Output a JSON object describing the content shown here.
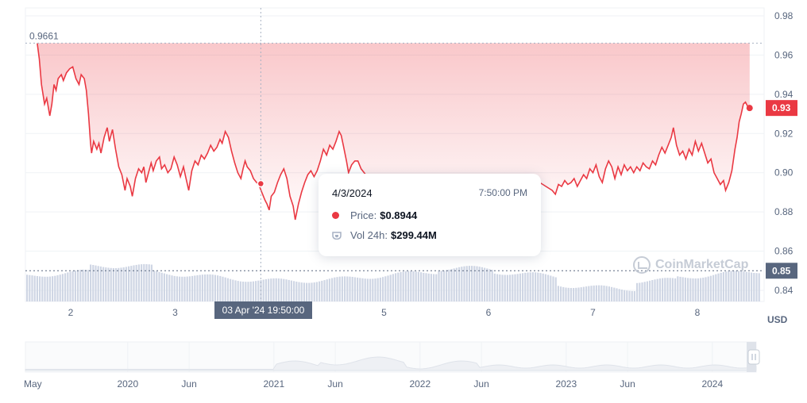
{
  "chart_data": {
    "type": "line",
    "currency": "USD",
    "y_ticks": [
      "0.98",
      "0.96",
      "0.94",
      "0.92",
      "0.90",
      "0.88",
      "0.86",
      "0.84"
    ],
    "ylim": [
      0.84,
      0.98
    ],
    "x_ticks": [
      {
        "label": "2",
        "day": 2
      },
      {
        "label": "3",
        "day": 3
      },
      {
        "label": "5",
        "day": 5
      },
      {
        "label": "6",
        "day": 6
      },
      {
        "label": "7",
        "day": 7
      },
      {
        "label": "8",
        "day": 8
      }
    ],
    "xlim_days": [
      1.57,
      8.6
    ],
    "price_series": {
      "name": "Price",
      "color": "#ea3943",
      "points": [
        [
          1.68,
          0.966
        ],
        [
          1.7,
          0.958
        ],
        [
          1.72,
          0.945
        ],
        [
          1.75,
          0.935
        ],
        [
          1.77,
          0.938
        ],
        [
          1.8,
          0.929
        ],
        [
          1.82,
          0.935
        ],
        [
          1.84,
          0.945
        ],
        [
          1.86,
          0.942
        ],
        [
          1.88,
          0.948
        ],
        [
          1.91,
          0.95
        ],
        [
          1.93,
          0.947
        ],
        [
          1.96,
          0.951
        ],
        [
          1.99,
          0.953
        ],
        [
          2.02,
          0.954
        ],
        [
          2.05,
          0.948
        ],
        [
          2.08,
          0.945
        ],
        [
          2.1,
          0.95
        ],
        [
          2.13,
          0.948
        ],
        [
          2.15,
          0.942
        ],
        [
          2.17,
          0.93
        ],
        [
          2.19,
          0.915
        ],
        [
          2.2,
          0.91
        ],
        [
          2.22,
          0.916
        ],
        [
          2.25,
          0.912
        ],
        [
          2.27,
          0.915
        ],
        [
          2.29,
          0.91
        ],
        [
          2.32,
          0.918
        ],
        [
          2.35,
          0.923
        ],
        [
          2.37,
          0.916
        ],
        [
          2.4,
          0.922
        ],
        [
          2.43,
          0.912
        ],
        [
          2.46,
          0.903
        ],
        [
          2.49,
          0.899
        ],
        [
          2.52,
          0.891
        ],
        [
          2.54,
          0.897
        ],
        [
          2.57,
          0.893
        ],
        [
          2.59,
          0.888
        ],
        [
          2.62,
          0.897
        ],
        [
          2.65,
          0.902
        ],
        [
          2.68,
          0.9
        ],
        [
          2.7,
          0.903
        ],
        [
          2.72,
          0.895
        ],
        [
          2.74,
          0.899
        ],
        [
          2.77,
          0.905
        ],
        [
          2.79,
          0.901
        ],
        [
          2.82,
          0.906
        ],
        [
          2.85,
          0.908
        ],
        [
          2.87,
          0.902
        ],
        [
          2.9,
          0.904
        ],
        [
          2.93,
          0.9
        ],
        [
          2.96,
          0.902
        ],
        [
          2.99,
          0.908
        ],
        [
          3.02,
          0.904
        ],
        [
          3.05,
          0.898
        ],
        [
          3.08,
          0.903
        ],
        [
          3.1,
          0.898
        ],
        [
          3.13,
          0.891
        ],
        [
          3.16,
          0.901
        ],
        [
          3.19,
          0.906
        ],
        [
          3.22,
          0.904
        ],
        [
          3.25,
          0.909
        ],
        [
          3.28,
          0.907
        ],
        [
          3.31,
          0.91
        ],
        [
          3.34,
          0.914
        ],
        [
          3.37,
          0.911
        ],
        [
          3.4,
          0.913
        ],
        [
          3.43,
          0.917
        ],
        [
          3.45,
          0.915
        ],
        [
          3.48,
          0.921
        ],
        [
          3.51,
          0.918
        ],
        [
          3.54,
          0.911
        ],
        [
          3.57,
          0.905
        ],
        [
          3.6,
          0.9
        ],
        [
          3.63,
          0.897
        ],
        [
          3.65,
          0.902
        ],
        [
          3.67,
          0.906
        ],
        [
          3.69,
          0.903
        ],
        [
          3.72,
          0.901
        ],
        [
          3.75,
          0.897
        ],
        [
          3.78,
          0.895
        ],
        [
          3.8,
          0.894
        ],
        [
          3.83,
          0.89
        ],
        [
          3.86,
          0.886
        ],
        [
          3.88,
          0.884
        ],
        [
          3.9,
          0.881
        ],
        [
          3.92,
          0.888
        ],
        [
          3.95,
          0.89
        ],
        [
          3.98,
          0.895
        ],
        [
          4.01,
          0.899
        ],
        [
          4.04,
          0.902
        ],
        [
          4.07,
          0.897
        ],
        [
          4.1,
          0.888
        ],
        [
          4.13,
          0.883
        ],
        [
          4.15,
          0.876
        ],
        [
          4.18,
          0.884
        ],
        [
          4.21,
          0.89
        ],
        [
          4.24,
          0.895
        ],
        [
          4.27,
          0.899
        ],
        [
          4.3,
          0.901
        ],
        [
          4.33,
          0.898
        ],
        [
          4.36,
          0.901
        ],
        [
          4.39,
          0.906
        ],
        [
          4.42,
          0.912
        ],
        [
          4.45,
          0.909
        ],
        [
          4.48,
          0.914
        ],
        [
          4.51,
          0.912
        ],
        [
          4.54,
          0.916
        ],
        [
          4.57,
          0.921
        ],
        [
          4.59,
          0.919
        ],
        [
          4.61,
          0.914
        ],
        [
          4.64,
          0.906
        ],
        [
          4.66,
          0.9
        ],
        [
          4.69,
          0.904
        ],
        [
          4.72,
          0.906
        ],
        [
          4.75,
          0.906
        ],
        [
          4.78,
          0.902
        ],
        [
          4.81,
          0.9
        ],
        [
          4.84,
          0.898
        ],
        [
          4.87,
          0.898
        ],
        [
          4.9,
          0.898
        ],
        [
          4.93,
          0.897
        ],
        [
          4.96,
          0.896
        ],
        [
          4.99,
          0.896
        ],
        [
          5.02,
          0.896
        ],
        [
          5.05,
          0.895
        ],
        [
          5.08,
          0.895
        ],
        [
          5.11,
          0.896
        ],
        [
          5.14,
          0.897
        ],
        [
          5.17,
          0.897
        ],
        [
          5.2,
          0.897
        ],
        [
          5.23,
          0.897
        ],
        [
          5.26,
          0.898
        ],
        [
          5.29,
          0.898
        ],
        [
          5.32,
          0.898
        ],
        [
          5.35,
          0.898
        ],
        [
          5.38,
          0.898
        ],
        [
          5.41,
          0.898
        ],
        [
          5.44,
          0.898
        ],
        [
          5.47,
          0.898
        ],
        [
          5.5,
          0.898
        ],
        [
          5.53,
          0.898
        ],
        [
          5.56,
          0.898
        ],
        [
          5.59,
          0.898
        ],
        [
          5.62,
          0.898
        ],
        [
          5.65,
          0.898
        ],
        [
          5.68,
          0.898
        ],
        [
          5.71,
          0.898
        ],
        [
          5.74,
          0.898
        ],
        [
          5.77,
          0.898
        ],
        [
          5.8,
          0.898
        ],
        [
          5.83,
          0.898
        ],
        [
          5.86,
          0.898
        ],
        [
          5.89,
          0.898
        ],
        [
          5.92,
          0.898
        ],
        [
          5.95,
          0.898
        ],
        [
          5.98,
          0.898
        ],
        [
          6.01,
          0.898
        ],
        [
          6.04,
          0.898
        ],
        [
          6.07,
          0.898
        ],
        [
          6.1,
          0.898
        ],
        [
          6.13,
          0.898
        ],
        [
          6.16,
          0.898
        ],
        [
          6.19,
          0.898
        ],
        [
          6.22,
          0.898
        ],
        [
          6.25,
          0.898
        ],
        [
          6.28,
          0.898
        ],
        [
          6.31,
          0.898
        ],
        [
          6.34,
          0.898
        ],
        [
          6.37,
          0.898
        ],
        [
          6.4,
          0.897
        ],
        [
          6.43,
          0.897
        ],
        [
          6.46,
          0.896
        ],
        [
          6.49,
          0.895
        ],
        [
          6.52,
          0.894
        ],
        [
          6.55,
          0.893
        ],
        [
          6.58,
          0.892
        ],
        [
          6.61,
          0.891
        ],
        [
          6.64,
          0.889
        ],
        [
          6.67,
          0.894
        ],
        [
          6.7,
          0.893
        ],
        [
          6.73,
          0.896
        ],
        [
          6.76,
          0.894
        ],
        [
          6.79,
          0.895
        ],
        [
          6.82,
          0.897
        ],
        [
          6.85,
          0.893
        ],
        [
          6.88,
          0.896
        ],
        [
          6.91,
          0.899
        ],
        [
          6.94,
          0.897
        ],
        [
          6.97,
          0.902
        ],
        [
          7.0,
          0.9
        ],
        [
          7.03,
          0.904
        ],
        [
          7.06,
          0.898
        ],
        [
          7.09,
          0.895
        ],
        [
          7.12,
          0.902
        ],
        [
          7.15,
          0.906
        ],
        [
          7.18,
          0.903
        ],
        [
          7.21,
          0.897
        ],
        [
          7.24,
          0.903
        ],
        [
          7.27,
          0.899
        ],
        [
          7.3,
          0.904
        ],
        [
          7.33,
          0.901
        ],
        [
          7.36,
          0.903
        ],
        [
          7.39,
          0.9
        ],
        [
          7.42,
          0.903
        ],
        [
          7.45,
          0.901
        ],
        [
          7.48,
          0.905
        ],
        [
          7.51,
          0.903
        ],
        [
          7.54,
          0.902
        ],
        [
          7.57,
          0.906
        ],
        [
          7.6,
          0.904
        ],
        [
          7.63,
          0.909
        ],
        [
          7.66,
          0.913
        ],
        [
          7.69,
          0.91
        ],
        [
          7.72,
          0.914
        ],
        [
          7.75,
          0.918
        ],
        [
          7.77,
          0.923
        ],
        [
          7.8,
          0.914
        ],
        [
          7.83,
          0.909
        ],
        [
          7.86,
          0.911
        ],
        [
          7.89,
          0.907
        ],
        [
          7.92,
          0.912
        ],
        [
          7.95,
          0.909
        ],
        [
          7.98,
          0.916
        ],
        [
          8.01,
          0.911
        ],
        [
          8.04,
          0.915
        ],
        [
          8.07,
          0.91
        ],
        [
          8.1,
          0.905
        ],
        [
          8.13,
          0.907
        ],
        [
          8.16,
          0.9
        ],
        [
          8.19,
          0.897
        ],
        [
          8.22,
          0.894
        ],
        [
          8.25,
          0.896
        ],
        [
          8.27,
          0.891
        ],
        [
          8.3,
          0.895
        ],
        [
          8.33,
          0.901
        ],
        [
          8.36,
          0.912
        ],
        [
          8.38,
          0.918
        ],
        [
          8.4,
          0.926
        ],
        [
          8.42,
          0.93
        ],
        [
          8.44,
          0.935
        ],
        [
          8.46,
          0.936
        ],
        [
          8.48,
          0.934
        ],
        [
          8.5,
          0.933
        ]
      ]
    },
    "volume_series": {
      "name": "Vol 24h",
      "color": "#cfd6e4"
    },
    "max_label": "0.9661",
    "max_value": 0.9661,
    "current_label": "0.93",
    "current_value": 0.933,
    "crosshair": {
      "day": 3.82,
      "value": 0.8944,
      "reference_price": 0.85,
      "reference_label": "0.85"
    },
    "tooltip": {
      "date": "4/3/2024",
      "time": "7:50:00 PM",
      "price_label": "Price:",
      "price_value": "$0.8944",
      "volume_label": "Vol 24h:",
      "volume_value": "$299.44M"
    },
    "x_crosshair_label": "03 Apr '24  19:50:00",
    "usd_label": "USD",
    "watermark": "CoinMarketCap",
    "navigator": {
      "labels": [
        {
          "label": "May",
          "year": 2019.35
        },
        {
          "label": "2020",
          "year": 2020.0
        },
        {
          "label": "Jun",
          "year": 2020.42
        },
        {
          "label": "2021",
          "year": 2021.0
        },
        {
          "label": "Jun",
          "year": 2021.42
        },
        {
          "label": "2022",
          "year": 2022.0
        },
        {
          "label": "Jun",
          "year": 2022.42
        },
        {
          "label": "2023",
          "year": 2023.0
        },
        {
          "label": "Jun",
          "year": 2023.42
        },
        {
          "label": "2024",
          "year": 2024.0
        }
      ],
      "xlim_years": [
        2019.3,
        2024.3
      ]
    }
  }
}
